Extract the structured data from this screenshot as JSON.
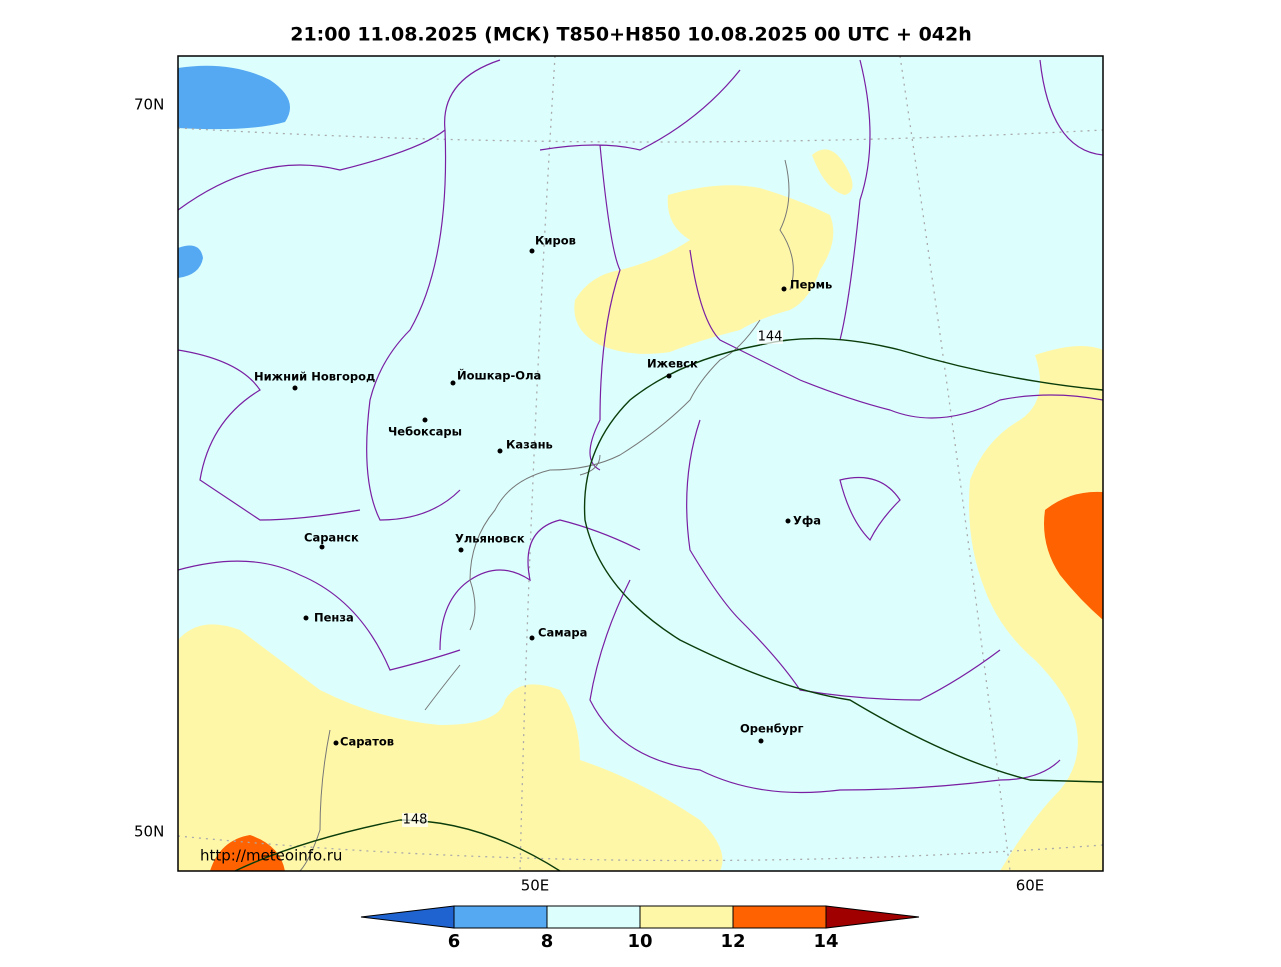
{
  "title": "21:00 11.08.2025 (МСК) T850+H850 10.08.2025 00 UTC + 042h",
  "lat_labels": [
    "70N",
    "50N"
  ],
  "lon_labels": [
    "50E",
    "60E"
  ],
  "cities": [
    "Киров",
    "Пермь",
    "Ижевск",
    "Йошкар-Ола",
    "Нижний Новгород",
    "Чебоксары",
    "Казань",
    "Ульяновск",
    "Саранск",
    "Уфа",
    "Пенза",
    "Самара",
    "Оренбург",
    "Саратов"
  ],
  "contours": [
    {
      "label": 144
    },
    {
      "label": 148
    }
  ],
  "watermark": "http://meteoinfo.ru",
  "colorbar": {
    "ticks": [
      6,
      8,
      10,
      12,
      14
    ],
    "colors": [
      "#1f63d0",
      "#55a8f2",
      "#dcfffe",
      "#fff7a8",
      "#ff6200",
      "#a00000"
    ]
  }
}
